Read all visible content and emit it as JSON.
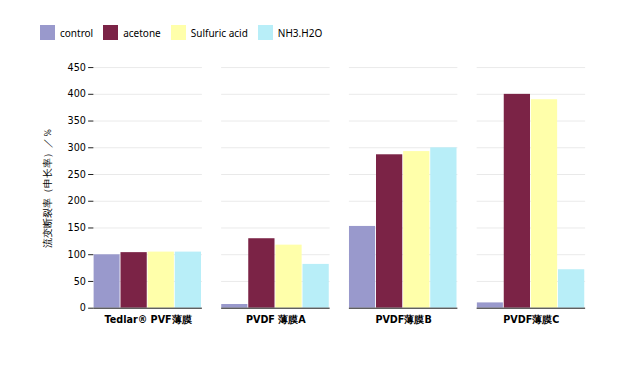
{
  "chart_data": {
    "type": "bar",
    "categories": [
      "Tedlar® PVF薄膜",
      "PVDF 薄膜A",
      "PVDF薄膜B",
      "PVDF薄膜C"
    ],
    "series": [
      {
        "name": "control",
        "color": "#9999cc",
        "values": [
          100,
          7,
          153,
          10
        ]
      },
      {
        "name": "acetone",
        "color": "#7b2346",
        "values": [
          104,
          130,
          287,
          400
        ]
      },
      {
        "name": "Sulfuric acid",
        "color": "#ffffaa",
        "values": [
          105,
          118,
          293,
          390
        ]
      },
      {
        "name": "NH3.H2O",
        "color": "#b8eef8",
        "values": [
          105,
          82,
          300,
          72
        ]
      }
    ],
    "ylabel": "流变断裂率（申长率）／％",
    "ylim": [
      0,
      450
    ],
    "yticks": [
      0,
      50,
      100,
      150,
      200,
      250,
      300,
      350,
      400,
      450
    ],
    "grid": true,
    "legend": "top"
  }
}
